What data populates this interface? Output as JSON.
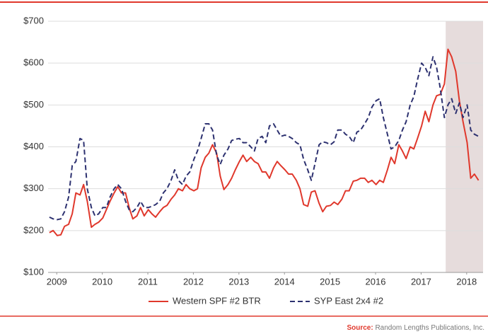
{
  "chart_data": {
    "type": "line",
    "x": [
      2008.84,
      2008.92,
      2009.01,
      2009.09,
      2009.17,
      2009.26,
      2009.34,
      2009.42,
      2009.51,
      2009.59,
      2009.67,
      2009.76,
      2009.84,
      2009.92,
      2010.01,
      2010.09,
      2010.17,
      2010.26,
      2010.34,
      2010.42,
      2010.51,
      2010.59,
      2010.67,
      2010.76,
      2010.84,
      2010.92,
      2011.01,
      2011.09,
      2011.17,
      2011.26,
      2011.34,
      2011.42,
      2011.51,
      2011.59,
      2011.67,
      2011.76,
      2011.84,
      2011.92,
      2012.01,
      2012.09,
      2012.17,
      2012.26,
      2012.34,
      2012.42,
      2012.51,
      2012.59,
      2012.67,
      2012.76,
      2012.84,
      2012.92,
      2013.01,
      2013.09,
      2013.17,
      2013.26,
      2013.34,
      2013.42,
      2013.51,
      2013.59,
      2013.67,
      2013.76,
      2013.84,
      2013.92,
      2014.01,
      2014.09,
      2014.17,
      2014.26,
      2014.34,
      2014.42,
      2014.51,
      2014.59,
      2014.67,
      2014.76,
      2014.84,
      2014.92,
      2015.01,
      2015.09,
      2015.17,
      2015.26,
      2015.34,
      2015.42,
      2015.51,
      2015.59,
      2015.67,
      2015.76,
      2015.84,
      2015.92,
      2016.01,
      2016.09,
      2016.17,
      2016.26,
      2016.34,
      2016.42,
      2016.51,
      2016.59,
      2016.67,
      2016.76,
      2016.84,
      2016.92,
      2017.01,
      2017.09,
      2017.17,
      2017.26,
      2017.34,
      2017.42,
      2017.51,
      2017.59,
      2017.67,
      2017.76,
      2017.84,
      2017.92,
      2018.01,
      2018.09,
      2018.17,
      2018.26
    ],
    "series": [
      {
        "name": "Western SPF #2 BTR",
        "color": "#e0382c",
        "dash": false,
        "values": [
          195,
          200,
          188,
          190,
          210,
          215,
          240,
          290,
          285,
          310,
          270,
          208,
          215,
          220,
          230,
          250,
          270,
          290,
          305,
          290,
          290,
          255,
          228,
          235,
          255,
          235,
          250,
          240,
          232,
          245,
          255,
          260,
          275,
          285,
          300,
          295,
          310,
          300,
          295,
          300,
          350,
          375,
          385,
          405,
          385,
          330,
          298,
          310,
          325,
          345,
          365,
          380,
          365,
          375,
          365,
          360,
          340,
          340,
          325,
          350,
          365,
          355,
          345,
          335,
          335,
          320,
          300,
          262,
          258,
          292,
          295,
          265,
          245,
          258,
          260,
          268,
          262,
          275,
          295,
          295,
          318,
          320,
          325,
          325,
          315,
          320,
          310,
          320,
          315,
          345,
          375,
          360,
          405,
          390,
          372,
          400,
          395,
          420,
          450,
          485,
          460,
          500,
          522,
          525,
          550,
          633,
          615,
          580,
          510,
          460,
          410,
          325,
          335,
          320
        ]
      },
      {
        "name": "SYP East 2x4 #2",
        "color": "#2d3170",
        "dash": true,
        "values": [
          232,
          228,
          226,
          228,
          245,
          280,
          355,
          365,
          420,
          415,
          300,
          255,
          235,
          240,
          255,
          255,
          280,
          300,
          310,
          300,
          270,
          250,
          245,
          255,
          270,
          255,
          255,
          258,
          262,
          270,
          290,
          300,
          320,
          345,
          320,
          310,
          330,
          340,
          370,
          390,
          420,
          455,
          455,
          440,
          380,
          358,
          380,
          395,
          415,
          418,
          420,
          410,
          410,
          400,
          390,
          420,
          425,
          410,
          450,
          455,
          440,
          425,
          428,
          425,
          420,
          410,
          405,
          370,
          345,
          320,
          360,
          405,
          412,
          410,
          405,
          412,
          440,
          440,
          430,
          425,
          410,
          435,
          440,
          455,
          470,
          495,
          510,
          515,
          470,
          430,
          395,
          400,
          415,
          440,
          460,
          500,
          520,
          560,
          600,
          590,
          570,
          615,
          590,
          540,
          470,
          500,
          515,
          480,
          505,
          470,
          500,
          440,
          430,
          425
        ]
      }
    ],
    "xlim": [
      2008.81,
      2018.36
    ],
    "xticks": [
      2009,
      2010,
      2011,
      2012,
      2013,
      2014,
      2015,
      2016,
      2017,
      2018
    ],
    "ylim": [
      100,
      700
    ],
    "yticks": [
      {
        "value": 100,
        "label": "$100"
      },
      {
        "value": 200,
        "label": "$200"
      },
      {
        "value": 300,
        "label": "$300"
      },
      {
        "value": 400,
        "label": "$400"
      },
      {
        "value": 500,
        "label": "$500"
      },
      {
        "value": 600,
        "label": "$600"
      },
      {
        "value": 700,
        "label": "$700"
      }
    ],
    "grid": true,
    "shaded_region": [
      2017.54,
      2018.36
    ],
    "shaded_color": "#e6dcdc",
    "source_label": "Source:",
    "source": "Random Lengths Publications, Inc."
  }
}
